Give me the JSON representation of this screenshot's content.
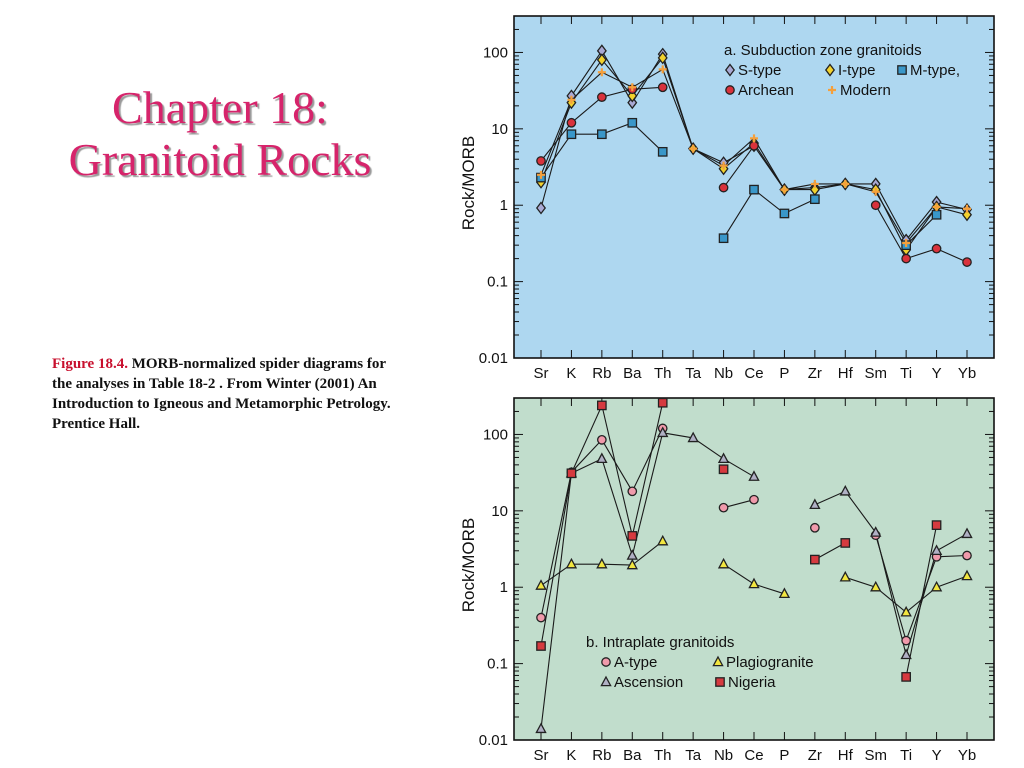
{
  "slide": {
    "title_line1": "Chapter 18:",
    "title_line2": "Granitoid Rocks",
    "caption_label": "Figure 18.4.",
    "caption_text": "MORB-normalized spider diagrams for the analyses in Table 18-2 . From Winter (2001) An Introduction to Igneous and Metamorphic Petrology. Prentice Hall."
  },
  "chart_data": [
    {
      "type": "line",
      "background": "#aed7f0",
      "title": "a. Subduction zone granitoids",
      "ylabel": "Rock/MORB",
      "y_scale": "log",
      "ylim": [
        0.01,
        300
      ],
      "y_ticks": [
        "100",
        "10",
        "1",
        "0.1",
        "0.01"
      ],
      "y_tick_values": [
        100,
        10,
        1,
        0.1,
        0.01
      ],
      "categories": [
        "Sr",
        "K",
        "Rb",
        "Ba",
        "Th",
        "Ta",
        "Nb",
        "Ce",
        "P",
        "Zr",
        "Hf",
        "Sm",
        "Ti",
        "Y",
        "Yb"
      ],
      "legend_rows": [
        [
          "S-type",
          "I-type",
          "M-type,"
        ],
        [
          "Archean",
          "Modern"
        ]
      ],
      "series": [
        {
          "name": "S-type",
          "marker": "diamond",
          "color": "#a9a9d4",
          "values": [
            0.92,
            27,
            105,
            22,
            95,
            5.5,
            3.6,
            6,
            1.6,
            1.7,
            1.9,
            1.9,
            0.35,
            1.1,
            0.88
          ]
        },
        {
          "name": "I-type",
          "marker": "diamond",
          "color": "#f2d22e",
          "values": [
            2.0,
            22,
            80,
            27,
            85,
            5.5,
            3.0,
            6.5,
            1.6,
            1.6,
            1.9,
            1.6,
            0.26,
            0.95,
            0.75
          ]
        },
        {
          "name": "M-type,",
          "marker": "square",
          "color": "#3a97c9",
          "values": [
            2.3,
            8.5,
            8.5,
            12,
            5,
            null,
            0.37,
            1.6,
            0.78,
            1.2,
            null,
            null,
            0.3,
            0.75,
            null
          ]
        },
        {
          "name": "Archean",
          "marker": "circle",
          "color": "#d9323c",
          "values": [
            3.8,
            12,
            26,
            33,
            35,
            null,
            1.7,
            6,
            null,
            null,
            null,
            1.0,
            0.2,
            0.27,
            0.18
          ]
        },
        {
          "name": "Modern",
          "marker": "plus",
          "color": "#f5a03c",
          "values": [
            2.5,
            24,
            55,
            35,
            60,
            5.5,
            3.3,
            7.5,
            1.6,
            1.9,
            1.9,
            1.5,
            0.32,
            0.95,
            0.9
          ]
        }
      ]
    },
    {
      "type": "line",
      "background": "#c1ddcc",
      "title": "b. Intraplate granitoids",
      "ylabel": "Rock/MORB",
      "y_scale": "log",
      "ylim": [
        0.01,
        300
      ],
      "y_ticks": [
        "100",
        "10",
        "1",
        "0.1",
        "0.01"
      ],
      "y_tick_values": [
        100,
        10,
        1,
        0.1,
        0.01
      ],
      "categories": [
        "Sr",
        "K",
        "Rb",
        "Ba",
        "Th",
        "Ta",
        "Nb",
        "Ce",
        "P",
        "Zr",
        "Hf",
        "Sm",
        "Ti",
        "Y",
        "Yb"
      ],
      "legend_rows": [
        [
          "A-type",
          "Plagiogranite"
        ],
        [
          "Ascension",
          "Nigeria"
        ]
      ],
      "series": [
        {
          "name": "A-type",
          "marker": "circle",
          "color": "#f09aab",
          "values": [
            0.4,
            32,
            85,
            18,
            120,
            null,
            11,
            14,
            null,
            6,
            null,
            4.8,
            0.2,
            2.5,
            2.6
          ]
        },
        {
          "name": "Plagiogranite",
          "marker": "triangle",
          "color": "#f2e640",
          "values": [
            1.05,
            2.0,
            2.0,
            1.95,
            4.0,
            null,
            2.0,
            1.1,
            0.82,
            null,
            1.35,
            1.0,
            0.47,
            1.0,
            1.4
          ]
        },
        {
          "name": "Ascension",
          "marker": "triangle",
          "color": "#b0b0c4",
          "values": [
            0.014,
            31,
            48,
            2.6,
            105,
            90,
            48,
            28,
            null,
            12,
            18,
            5.2,
            0.13,
            3.0,
            5.0
          ]
        },
        {
          "name": "Nigeria",
          "marker": "square",
          "color": "#d63a3f",
          "values": [
            0.17,
            31,
            240,
            4.7,
            260,
            null,
            35,
            null,
            null,
            2.3,
            3.8,
            null,
            0.067,
            6.5,
            null
          ]
        }
      ]
    }
  ]
}
